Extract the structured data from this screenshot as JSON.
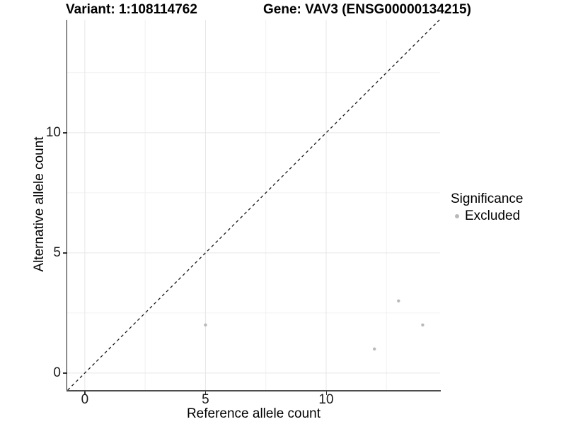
{
  "figure": {
    "title_left": "Variant: 1:108114762",
    "title_right": "Gene: VAV3 (ENSG00000134215)"
  },
  "chart_data": {
    "type": "scatter",
    "xlabel": "Reference allele count",
    "ylabel": "Alternative allele count",
    "xlim": [
      -0.73,
      14.72
    ],
    "ylim": [
      -0.71,
      14.7
    ],
    "x_major_ticks": [
      0,
      5,
      10
    ],
    "x_minor_ticks": [
      2.5,
      7.5,
      12.5
    ],
    "y_major_ticks": [
      0,
      5,
      10
    ],
    "y_minor_ticks": [
      2.5,
      7.5,
      12.5
    ],
    "grid": true,
    "identity_line": {
      "style": "dashed",
      "from": [
        -0.71,
        -0.71
      ],
      "to": [
        14.7,
        14.7
      ],
      "color": "#1a1a1a"
    },
    "series": [
      {
        "name": "Excluded",
        "color": "#b9b9b9",
        "points": [
          {
            "x": 5,
            "y": 2
          },
          {
            "x": 12,
            "y": 1
          },
          {
            "x": 13,
            "y": 3
          },
          {
            "x": 14,
            "y": 2
          }
        ]
      }
    ],
    "legend": {
      "title": "Significance",
      "position": "right",
      "items": [
        {
          "label": "Excluded",
          "color": "#b9b9b9"
        }
      ]
    },
    "colors": {
      "grid_major": "#e7e7e7",
      "grid_minor": "#f0f0f0",
      "axis_line": "#333333",
      "point": "#b9b9b9"
    }
  }
}
